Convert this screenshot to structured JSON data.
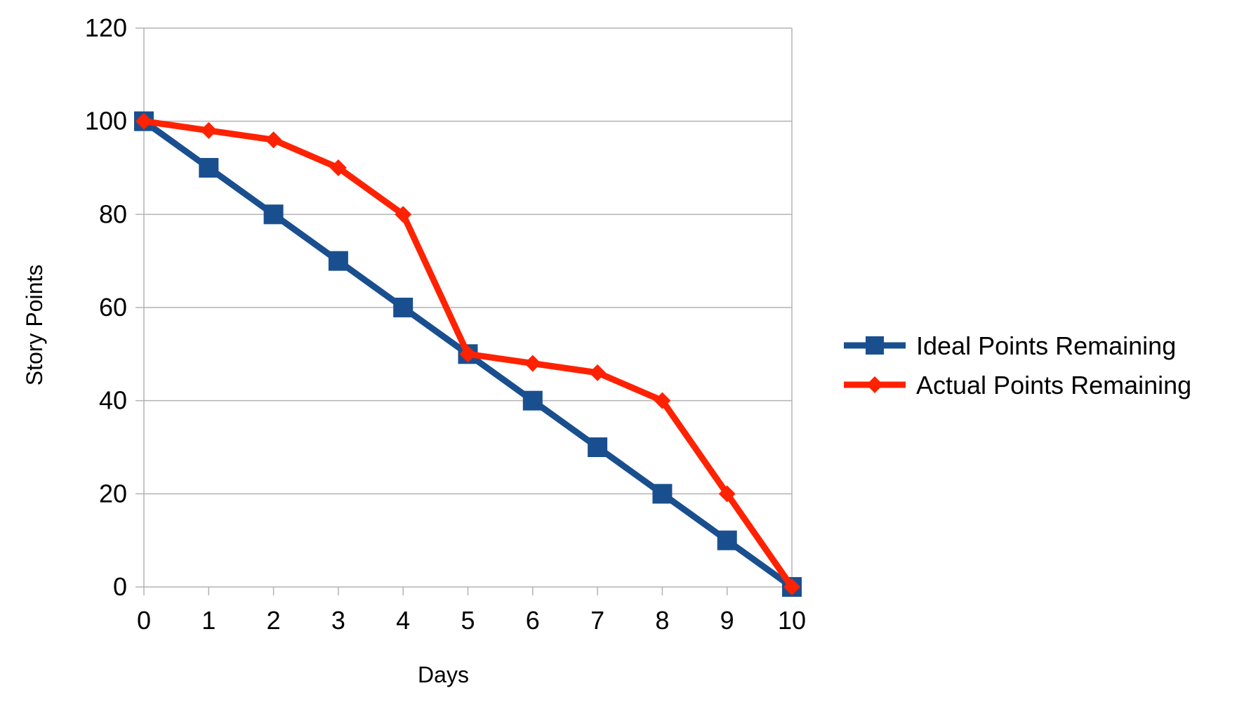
{
  "chart_data": {
    "type": "line",
    "xlabel": "Days",
    "ylabel": "Story Points",
    "x": [
      0,
      1,
      2,
      3,
      4,
      5,
      6,
      7,
      8,
      9,
      10
    ],
    "x_tick_labels": [
      "0",
      "1",
      "2",
      "3",
      "4",
      "5",
      "6",
      "7",
      "8",
      "9",
      "10"
    ],
    "y_tick_labels": [
      "0",
      "20",
      "40",
      "60",
      "80",
      "100",
      "120"
    ],
    "xlim": [
      0,
      10
    ],
    "ylim": [
      0,
      120
    ],
    "y_ticks": [
      0,
      20,
      40,
      60,
      80,
      100,
      120
    ],
    "grid": "horizontal",
    "legend_position": "right",
    "series": [
      {
        "name": "Ideal Points Remaining",
        "color": "#1a4f8f",
        "marker": "square",
        "values": [
          100,
          90,
          80,
          70,
          60,
          50,
          40,
          30,
          20,
          10,
          0
        ]
      },
      {
        "name": "Actual Points Remaining",
        "color": "#ff2200",
        "marker": "diamond",
        "values": [
          100,
          98,
          96,
          90,
          80,
          50,
          48,
          46,
          40,
          20,
          0
        ]
      }
    ]
  }
}
